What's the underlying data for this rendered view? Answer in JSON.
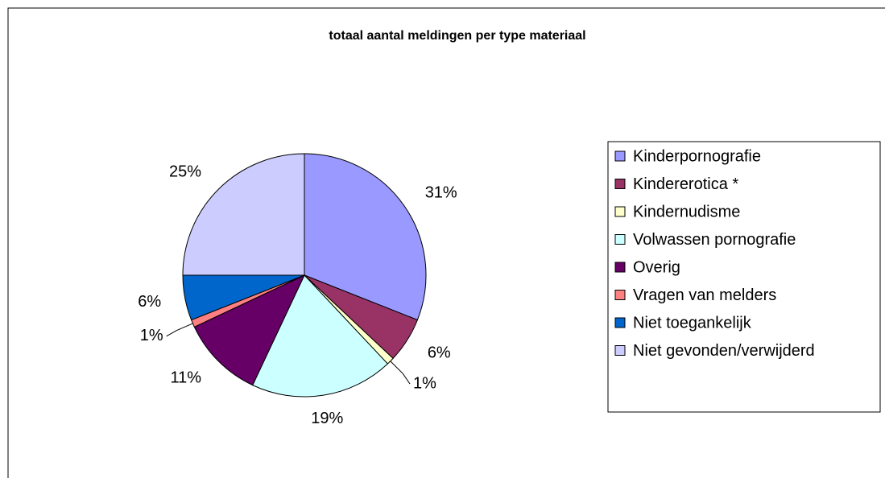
{
  "chart_data": {
    "type": "pie",
    "title": "totaal aantal meldingen per type materiaal",
    "categories": [
      "Kinderpornografie",
      "Kindererotica *",
      "Kindernudisme",
      "Volwassen pornografie",
      "Overig",
      "Vragen van melders",
      "Niet toegankelijk",
      "Niet gevonden/verwijderd"
    ],
    "values": [
      31,
      6,
      1,
      19,
      11,
      1,
      6,
      25
    ],
    "value_labels": [
      "31%",
      "6%",
      "1%",
      "19%",
      "11%",
      "1%",
      "6%",
      "25%"
    ],
    "colors": [
      "#9999ff",
      "#993366",
      "#ffffcc",
      "#ccffff",
      "#660066",
      "#ff8080",
      "#0066cc",
      "#ccccff"
    ],
    "legend": "right"
  }
}
